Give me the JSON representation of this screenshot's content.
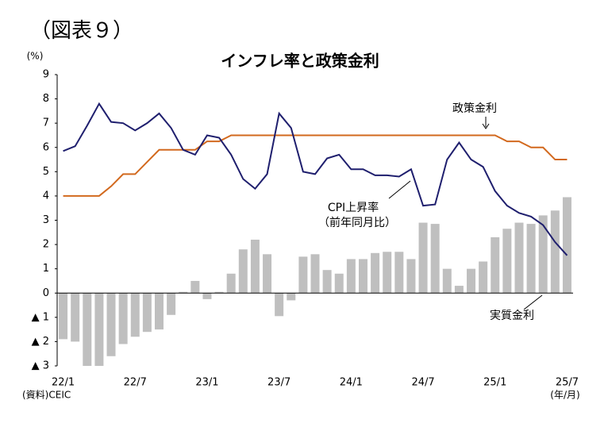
{
  "figure_label": "（図表９）",
  "chart_data": {
    "type": "bar-line",
    "title": "インフレ率と政策金利",
    "y_unit": "(%)",
    "x_unit": "(年/月)",
    "source": "(資料)CEIC",
    "categories": [
      "22/1",
      null,
      null,
      null,
      null,
      null,
      "22/7",
      null,
      null,
      null,
      null,
      null,
      "23/1",
      null,
      null,
      null,
      null,
      null,
      "23/7",
      null,
      null,
      null,
      null,
      null,
      "24/1",
      null,
      null,
      null,
      null,
      null,
      "24/7",
      null,
      null,
      null,
      null,
      null,
      "25/1",
      null,
      null,
      null,
      null,
      null,
      "25/7"
    ],
    "ylim": [
      -3,
      9
    ],
    "yticks": [
      {
        "value": -3,
        "label": "▲ 3"
      },
      {
        "value": -2,
        "label": "▲ 2"
      },
      {
        "value": -1,
        "label": "▲ 1"
      },
      0,
      1,
      2,
      3,
      4,
      5,
      6,
      7,
      8,
      9
    ],
    "series": [
      {
        "name": "実質金利",
        "kind": "bar",
        "color": "#bfbfbf",
        "values": [
          -1.9,
          -2.0,
          -3.0,
          -3.0,
          -2.6,
          -2.1,
          -1.8,
          -1.6,
          -1.5,
          -0.9,
          0.05,
          0.5,
          -0.25,
          0.05,
          0.8,
          1.8,
          2.2,
          1.6,
          -0.95,
          -0.3,
          1.5,
          1.6,
          0.95,
          0.8,
          1.4,
          1.4,
          1.65,
          1.7,
          1.7,
          1.4,
          2.9,
          2.85,
          1.0,
          0.3,
          1.0,
          1.3,
          2.3,
          2.65,
          2.9,
          2.85,
          3.2,
          3.4,
          3.95
        ]
      },
      {
        "name": "政策金利",
        "kind": "line",
        "color": "#d2691e",
        "values": [
          4.0,
          4.0,
          4.0,
          4.0,
          4.4,
          4.9,
          4.9,
          5.4,
          5.9,
          5.9,
          5.9,
          5.9,
          6.25,
          6.25,
          6.5,
          6.5,
          6.5,
          6.5,
          6.5,
          6.5,
          6.5,
          6.5,
          6.5,
          6.5,
          6.5,
          6.5,
          6.5,
          6.5,
          6.5,
          6.5,
          6.5,
          6.5,
          6.5,
          6.5,
          6.5,
          6.5,
          6.5,
          6.25,
          6.25,
          6.0,
          6.0,
          5.5,
          5.5
        ]
      },
      {
        "name": "CPI上昇率",
        "kind": "line",
        "color": "#1f1f6e",
        "values": [
          5.85,
          6.05,
          6.9,
          7.8,
          7.05,
          7.0,
          6.7,
          7.0,
          7.4,
          6.8,
          5.9,
          5.7,
          6.5,
          6.4,
          5.7,
          4.7,
          4.3,
          4.9,
          7.4,
          6.8,
          5.0,
          4.9,
          5.55,
          5.7,
          5.1,
          5.1,
          4.85,
          4.85,
          4.8,
          5.1,
          3.6,
          3.65,
          5.5,
          6.2,
          5.5,
          5.2,
          4.2,
          3.6,
          3.3,
          3.15,
          2.8,
          2.1,
          1.55
        ]
      }
    ],
    "annotations": [
      "政策金利",
      "CPI上昇率",
      "（前年同月比）",
      "実質金利"
    ]
  }
}
